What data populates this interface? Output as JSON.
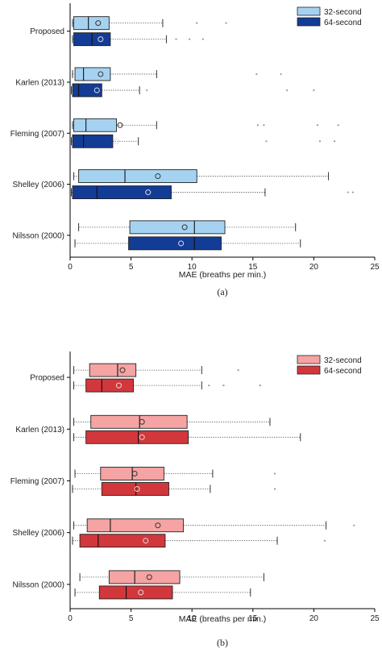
{
  "chart_data": [
    {
      "type": "boxplot",
      "caption": "(a)",
      "xlabel": "MAE (breaths per min.)",
      "xlim": [
        0,
        25
      ],
      "xticks": [
        0,
        5,
        10,
        15,
        20,
        25
      ],
      "categories": [
        "Proposed",
        "Karlen (2013)",
        "Fleming (2007)",
        "Shelley (2006)",
        "Nilsson (2000)"
      ],
      "legend": {
        "placement": "top-right",
        "entries": [
          "32-second",
          "64-second"
        ]
      },
      "series": [
        {
          "name": "32-second",
          "color": "#a6d2f2",
          "boxes": [
            {
              "whislo": 0.2,
              "q1": 0.3,
              "med": 1.5,
              "q3": 3.2,
              "whishi": 7.6,
              "mean": 2.3,
              "outliers": [
                10.4,
                12.8
              ]
            },
            {
              "whislo": 0.2,
              "q1": 0.4,
              "med": 1.1,
              "q3": 3.3,
              "whishi": 7.1,
              "mean": 2.5,
              "outliers": [
                15.3,
                17.3
              ]
            },
            {
              "whislo": 0.2,
              "q1": 0.3,
              "med": 1.3,
              "q3": 3.8,
              "whishi": 7.1,
              "mean": 4.1,
              "outliers": [
                15.4,
                15.9,
                20.3,
                22.0
              ]
            },
            {
              "whislo": 0.3,
              "q1": 0.7,
              "med": 4.5,
              "q3": 10.4,
              "whishi": 21.2,
              "mean": 7.2,
              "outliers": []
            },
            {
              "whislo": 0.7,
              "q1": 4.9,
              "med": 10.2,
              "q3": 12.7,
              "whishi": 18.5,
              "mean": 9.4,
              "outliers": []
            }
          ]
        },
        {
          "name": "64-second",
          "color": "#133c96",
          "boxes": [
            {
              "whislo": 0.2,
              "q1": 0.3,
              "med": 1.8,
              "q3": 3.3,
              "whishi": 7.9,
              "mean": 2.5,
              "outliers": [
                8.7,
                9.8,
                10.9
              ]
            },
            {
              "whislo": 0.1,
              "q1": 0.2,
              "med": 0.7,
              "q3": 2.6,
              "whishi": 5.7,
              "mean": 2.2,
              "outliers": [
                6.3,
                17.8,
                20.0
              ]
            },
            {
              "whislo": 0.1,
              "q1": 0.2,
              "med": 1.1,
              "q3": 3.5,
              "whishi": 5.6,
              "mean": 3.8,
              "outliers": [
                16.1,
                20.5,
                21.7
              ]
            },
            {
              "whislo": 0.1,
              "q1": 0.2,
              "med": 2.2,
              "q3": 8.3,
              "whishi": 16.0,
              "mean": 6.4,
              "outliers": [
                22.8,
                23.2
              ]
            },
            {
              "whislo": 0.4,
              "q1": 4.8,
              "med": 10.2,
              "q3": 12.4,
              "whishi": 18.9,
              "mean": 9.1,
              "outliers": []
            }
          ]
        }
      ]
    },
    {
      "type": "boxplot",
      "caption": "(b)",
      "xlabel": "MAE (breaths per min.)",
      "xlim": [
        0,
        25
      ],
      "xticks": [
        0,
        5,
        10,
        15,
        20,
        25
      ],
      "categories": [
        "Proposed",
        "Karlen (2013)",
        "Fleming (2007)",
        "Shelley (2006)",
        "Nilsson (2000)"
      ],
      "legend": {
        "placement": "top-right",
        "entries": [
          "32-second",
          "64-second"
        ]
      },
      "series": [
        {
          "name": "32-second",
          "color": "#f5a3a3",
          "boxes": [
            {
              "whislo": 0.3,
              "q1": 1.6,
              "med": 3.9,
              "q3": 5.4,
              "whishi": 10.8,
              "mean": 4.3,
              "outliers": [
                13.8
              ]
            },
            {
              "whislo": 0.3,
              "q1": 1.7,
              "med": 5.7,
              "q3": 9.6,
              "whishi": 16.4,
              "mean": 5.9,
              "outliers": []
            },
            {
              "whislo": 0.4,
              "q1": 2.5,
              "med": 5.1,
              "q3": 7.7,
              "whishi": 11.7,
              "mean": 5.3,
              "outliers": [
                16.8
              ]
            },
            {
              "whislo": 0.3,
              "q1": 1.4,
              "med": 3.3,
              "q3": 9.3,
              "whishi": 21.0,
              "mean": 7.2,
              "outliers": [
                23.3
              ]
            },
            {
              "whislo": 0.8,
              "q1": 3.2,
              "med": 5.3,
              "q3": 9.0,
              "whishi": 15.9,
              "mean": 6.5,
              "outliers": []
            }
          ]
        },
        {
          "name": "64-second",
          "color": "#d2373c",
          "boxes": [
            {
              "whislo": 0.3,
              "q1": 1.3,
              "med": 2.6,
              "q3": 5.2,
              "whishi": 10.8,
              "mean": 4.0,
              "outliers": [
                11.4,
                12.6,
                15.6
              ]
            },
            {
              "whislo": 0.3,
              "q1": 1.3,
              "med": 5.6,
              "q3": 9.7,
              "whishi": 18.9,
              "mean": 5.9,
              "outliers": []
            },
            {
              "whislo": 0.2,
              "q1": 2.6,
              "med": 5.4,
              "q3": 8.1,
              "whishi": 11.5,
              "mean": 5.5,
              "outliers": [
                16.8
              ]
            },
            {
              "whislo": 0.2,
              "q1": 0.8,
              "med": 2.3,
              "q3": 7.8,
              "whishi": 17.0,
              "mean": 6.2,
              "outliers": [
                20.9
              ]
            },
            {
              "whislo": 0.4,
              "q1": 2.4,
              "med": 4.6,
              "q3": 8.4,
              "whishi": 14.8,
              "mean": 5.8,
              "outliers": []
            }
          ]
        }
      ]
    }
  ]
}
